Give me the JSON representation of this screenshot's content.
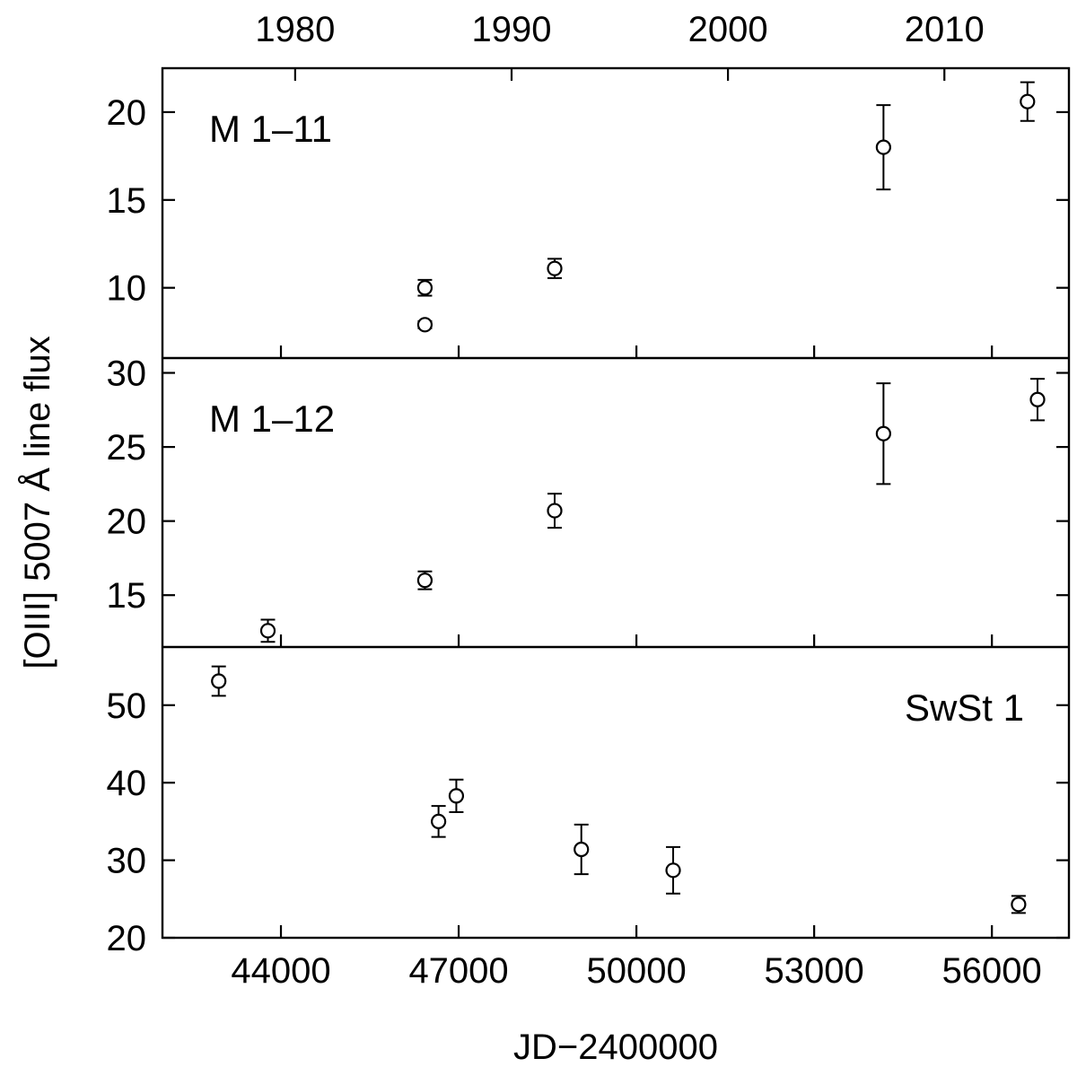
{
  "chart_data": {
    "type": "scatter",
    "ylabel": "[OIII] 5007 Å line flux",
    "xlabel": "JD−2400000",
    "xlim": [
      42000,
      57300
    ],
    "xticks": [
      44000,
      47000,
      50000,
      53000,
      56000
    ],
    "top_axis": {
      "ticks": [
        {
          "year": "1980",
          "jd": 44240
        },
        {
          "year": "1990",
          "jd": 47893
        },
        {
          "year": "2000",
          "jd": 51545
        },
        {
          "year": "2010",
          "jd": 55198
        }
      ]
    },
    "panels": [
      {
        "label": "M 1–11",
        "label_anchor": "start",
        "ylim": [
          6.0,
          22.5
        ],
        "yticks": [
          10,
          15,
          20
        ],
        "points": [
          {
            "x": 46430,
            "y": 10.0,
            "err": 0.45
          },
          {
            "x": 46430,
            "y": 7.9,
            "err": 0.2
          },
          {
            "x": 48620,
            "y": 11.1,
            "err": 0.55
          },
          {
            "x": 54170,
            "y": 18.0,
            "err": 2.4
          },
          {
            "x": 56600,
            "y": 20.6,
            "err": 1.1
          }
        ]
      },
      {
        "label": "M 1–12",
        "label_anchor": "start",
        "ylim": [
          11.5,
          31.0
        ],
        "yticks": [
          15,
          20,
          25,
          30
        ],
        "points": [
          {
            "x": 43780,
            "y": 12.6,
            "err": 0.75
          },
          {
            "x": 46430,
            "y": 16.0,
            "err": 0.6
          },
          {
            "x": 48620,
            "y": 20.7,
            "err": 1.15
          },
          {
            "x": 54170,
            "y": 25.9,
            "err": 3.4
          },
          {
            "x": 56770,
            "y": 28.2,
            "err": 1.4
          }
        ]
      },
      {
        "label": "SwSt 1",
        "label_anchor": "end",
        "ylim": [
          20,
          57.5
        ],
        "yticks": [
          20,
          30,
          40,
          50
        ],
        "points": [
          {
            "x": 42950,
            "y": 53.1,
            "err": 1.9
          },
          {
            "x": 46660,
            "y": 35.0,
            "err": 2.0
          },
          {
            "x": 46960,
            "y": 38.3,
            "err": 2.1
          },
          {
            "x": 49070,
            "y": 31.4,
            "err": 3.2
          },
          {
            "x": 50620,
            "y": 28.7,
            "err": 3.0
          },
          {
            "x": 56450,
            "y": 24.3,
            "err": 1.1
          }
        ]
      }
    ]
  }
}
